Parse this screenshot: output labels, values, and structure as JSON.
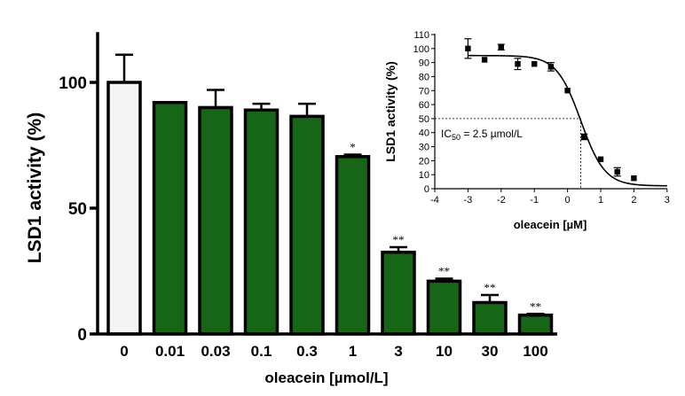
{
  "chart_data": [
    {
      "type": "bar",
      "categories": [
        "0",
        "0.01",
        "0.03",
        "0.1",
        "0.3",
        "1",
        "3",
        "10",
        "30",
        "100"
      ],
      "values": [
        100,
        92,
        90,
        89,
        86.5,
        70.5,
        32.5,
        21,
        12.5,
        7.5
      ],
      "errors": [
        11,
        0,
        7,
        2.5,
        5,
        0.8,
        2,
        1,
        3,
        0.5
      ],
      "significance": [
        "",
        "",
        "",
        "",
        "",
        "*",
        "**",
        "**",
        "**",
        "**"
      ],
      "bar_colors": [
        "#f5f5f5",
        "#176617",
        "#176617",
        "#176617",
        "#176617",
        "#176617",
        "#176617",
        "#176617",
        "#176617",
        "#176617"
      ],
      "xlabel": "oleacein [µmol/L]",
      "ylabel": "LSD1 activity (%)",
      "ylim": [
        0,
        120
      ],
      "yticks": [
        "0",
        "50",
        "100"
      ],
      "grid": false
    },
    {
      "type": "scatter",
      "points": [
        {
          "x": -3,
          "y": 100,
          "err": 7
        },
        {
          "x": -2.5,
          "y": 92,
          "err": 0
        },
        {
          "x": -2,
          "y": 101,
          "err": 2
        },
        {
          "x": -1.5,
          "y": 89,
          "err": 4
        },
        {
          "x": -1,
          "y": 89,
          "err": 0
        },
        {
          "x": -0.5,
          "y": 87,
          "err": 3
        },
        {
          "x": 0,
          "y": 70,
          "err": 0
        },
        {
          "x": 0.5,
          "y": 37,
          "err": 2
        },
        {
          "x": 1,
          "y": 21,
          "err": 0
        },
        {
          "x": 1.5,
          "y": 12,
          "err": 3
        },
        {
          "x": 2,
          "y": 7.5,
          "err": 0
        }
      ],
      "fit_curve": {
        "top": 95,
        "bottom": 2,
        "logIC50": 0.4,
        "hill": -1.2
      },
      "xlabel": "oleacein [µM]",
      "ylabel": "LSD1 activity (%)",
      "xlim": [
        -4,
        3
      ],
      "ylim": [
        0,
        110
      ],
      "xticks": [
        "-4",
        "-3",
        "-2",
        "-1",
        "0",
        "1",
        "2",
        "3"
      ],
      "yticks": [
        "0",
        "10",
        "20",
        "30",
        "40",
        "50",
        "60",
        "70",
        "80",
        "90",
        "100",
        "110"
      ],
      "annotation": {
        "prefix": "IC",
        "subscript": "50",
        "suffix": " = 2.5 µmol/L"
      },
      "reference_line_y": 50,
      "reference_line_x": 0.4
    }
  ]
}
